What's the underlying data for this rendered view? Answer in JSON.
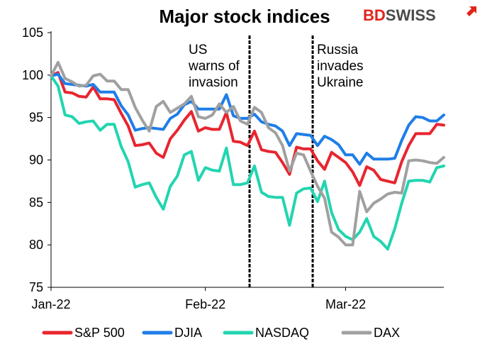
{
  "brand": {
    "bd": "BD",
    "swiss": "SWISS",
    "bd_color": "#e2231a",
    "swiss_color": "#4a4a4a"
  },
  "chart_data": {
    "type": "line",
    "title": "Major stock indices",
    "ylim": [
      75,
      105
    ],
    "yticks": [
      75,
      80,
      85,
      90,
      95,
      100,
      105
    ],
    "xlim": [
      0,
      56
    ],
    "xticks": [
      {
        "pos": 0,
        "label": "Jan-22"
      },
      {
        "pos": 22,
        "label": "Feb-22"
      },
      {
        "pos": 42,
        "label": "Mar-22"
      }
    ],
    "grid": false,
    "legend": "bottom",
    "annotations": [
      {
        "pos": 28,
        "lines": [
          "US",
          "warns of",
          "invasion"
        ]
      },
      {
        "pos": 37,
        "lines": [
          "Russia",
          "invades",
          "Ukraine"
        ]
      }
    ],
    "series": [
      {
        "name": "S&P 500",
        "color": "#e8252f",
        "x": [
          0,
          1,
          2,
          3,
          4,
          5,
          6,
          7,
          8,
          9,
          10,
          11,
          12,
          13,
          14,
          15,
          16,
          17,
          18,
          19,
          20,
          21,
          22,
          23,
          24,
          25,
          26,
          27,
          28,
          29,
          30,
          31,
          32,
          33,
          34,
          35,
          36,
          37,
          38,
          39,
          40,
          41,
          42,
          43,
          44,
          45,
          46,
          47,
          48,
          49,
          50,
          51,
          52,
          53,
          54,
          55,
          56
        ],
        "values": [
          99.9,
          100.3,
          98.0,
          97.9,
          97.5,
          97.4,
          98.6,
          97.2,
          97.2,
          97.1,
          95.5,
          94.0,
          91.7,
          91.8,
          92.0,
          90.8,
          90.3,
          92.5,
          93.5,
          94.7,
          95.7,
          93.4,
          93.8,
          93.6,
          93.6,
          95.6,
          92.2,
          92.1,
          91.7,
          93.4,
          91.2,
          91.0,
          90.9,
          89.7,
          88.3,
          91.5,
          91.3,
          91.3,
          89.9,
          88.9,
          90.9,
          90.3,
          89.7,
          88.6,
          87.0,
          89.2,
          88.8,
          87.7,
          87.5,
          87.3,
          89.8,
          91.7,
          93.1,
          93.1,
          93.1,
          94.2,
          94.1
        ]
      },
      {
        "name": "DJIA",
        "color": "#1f7ee8",
        "x": [
          0,
          1,
          2,
          3,
          4,
          5,
          6,
          7,
          8,
          9,
          10,
          11,
          12,
          13,
          14,
          15,
          16,
          17,
          18,
          19,
          20,
          21,
          22,
          23,
          24,
          25,
          26,
          27,
          28,
          29,
          30,
          31,
          32,
          33,
          34,
          35,
          36,
          37,
          38,
          39,
          40,
          41,
          42,
          43,
          44,
          45,
          46,
          47,
          48,
          49,
          50,
          51,
          52,
          53,
          54,
          55,
          56
        ],
        "values": [
          99.9,
          100.1,
          99.0,
          98.9,
          98.8,
          98.7,
          98.9,
          98.0,
          98.0,
          98.0,
          96.4,
          95.3,
          93.5,
          93.7,
          93.8,
          93.7,
          93.6,
          94.9,
          95.4,
          96.5,
          96.9,
          96.0,
          96.0,
          96.0,
          96.0,
          97.7,
          95.2,
          94.9,
          94.9,
          95.4,
          94.5,
          94.2,
          94.0,
          93.4,
          91.7,
          93.1,
          93.0,
          92.9,
          91.7,
          92.8,
          92.4,
          91.8,
          90.6,
          90.6,
          89.5,
          90.8,
          90.1,
          90.1,
          90.1,
          90.2,
          92.3,
          94.1,
          95.1,
          95.0,
          94.6,
          94.6,
          95.3
        ]
      },
      {
        "name": "NASDAQ",
        "color": "#22d5b0",
        "x": [
          0,
          1,
          2,
          3,
          4,
          5,
          6,
          7,
          8,
          9,
          10,
          11,
          12,
          13,
          14,
          15,
          16,
          17,
          18,
          19,
          20,
          21,
          22,
          23,
          24,
          25,
          26,
          27,
          28,
          29,
          30,
          31,
          32,
          33,
          34,
          35,
          36,
          37,
          38,
          39,
          40,
          41,
          42,
          43,
          44,
          45,
          46,
          47,
          48,
          49,
          50,
          51,
          52,
          53,
          54,
          55,
          56
        ],
        "values": [
          99.9,
          98.7,
          95.3,
          95.1,
          94.3,
          94.5,
          94.6,
          93.5,
          94.2,
          94.2,
          91.6,
          89.8,
          86.8,
          87.1,
          87.3,
          85.6,
          84.2,
          86.9,
          88.1,
          90.6,
          91.0,
          87.6,
          89.1,
          88.8,
          88.7,
          91.4,
          87.1,
          87.1,
          87.3,
          89.3,
          86.2,
          85.7,
          85.6,
          85.6,
          82.3,
          86.1,
          86.6,
          86.7,
          85.1,
          87.5,
          83.8,
          81.8,
          81.0,
          80.6,
          81.5,
          83.1,
          81.0,
          80.4,
          79.5,
          81.9,
          84.9,
          87.5,
          87.6,
          87.6,
          87.4,
          89.1,
          89.3
        ]
      },
      {
        "name": "DAX",
        "color": "#a0a0a0",
        "x": [
          0,
          1,
          2,
          3,
          4,
          5,
          6,
          7,
          8,
          9,
          10,
          11,
          12,
          13,
          14,
          15,
          16,
          17,
          18,
          19,
          20,
          21,
          22,
          23,
          24,
          25,
          26,
          27,
          28,
          29,
          30,
          31,
          32,
          33,
          34,
          35,
          36,
          37,
          38,
          39,
          40,
          41,
          42,
          43,
          44,
          45,
          46,
          47,
          48,
          49,
          50,
          51,
          52,
          53,
          54,
          55,
          56
        ],
        "values": [
          99.9,
          101.5,
          99.6,
          99.2,
          98.7,
          98.8,
          99.9,
          100.1,
          99.3,
          99.3,
          98.3,
          98.3,
          96.2,
          94.7,
          93.4,
          96.3,
          96.9,
          95.6,
          96.1,
          96.6,
          97.5,
          95.1,
          94.9,
          95.3,
          96.6,
          95.6,
          96.3,
          94.6,
          94.2,
          96.2,
          95.6,
          93.8,
          93.2,
          91.7,
          88.7,
          90.8,
          90.6,
          88.7,
          86.9,
          85.5,
          81.5,
          80.9,
          80.0,
          80.0,
          86.3,
          83.9,
          84.9,
          85.4,
          86.0,
          86.2,
          86.1,
          89.9,
          90.0,
          89.9,
          89.7,
          89.6,
          90.3
        ]
      }
    ]
  }
}
